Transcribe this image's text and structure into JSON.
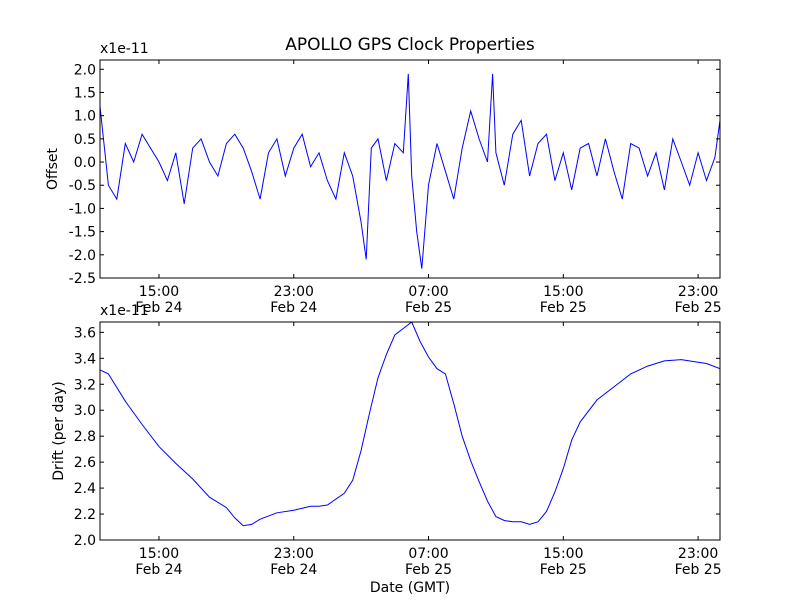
{
  "title": "APOLLO GPS Clock Properties",
  "series_color": "#0000ff",
  "chart_data": [
    {
      "type": "line",
      "ylabel": "Offset",
      "xlabel": "",
      "y_multiplier": "x1e-11",
      "ylim": [
        -2.5,
        2.2
      ],
      "xlim_hours": [
        11.5,
        48.3
      ],
      "yticks": [
        "2.0",
        "1.5",
        "1.0",
        "0.5",
        "0.0",
        "-0.5",
        "-1.0",
        "-1.5",
        "-2.0",
        "-2.5"
      ],
      "ytick_values": [
        2.0,
        1.5,
        1.0,
        0.5,
        0.0,
        -0.5,
        -1.0,
        -1.5,
        -2.0,
        -2.5
      ],
      "xticks": [
        {
          "hour": 15,
          "time": "15:00",
          "date": "Feb 24"
        },
        {
          "hour": 23,
          "time": "23:00",
          "date": "Feb 24"
        },
        {
          "hour": 31,
          "time": "07:00",
          "date": "Feb 25"
        },
        {
          "hour": 39,
          "time": "15:00",
          "date": "Feb 25"
        },
        {
          "hour": 47,
          "time": "23:00",
          "date": "Feb 25"
        }
      ],
      "series": [
        {
          "x": [
            11.5,
            12.0,
            12.5,
            13.0,
            13.5,
            14.0,
            14.5,
            15.0,
            15.5,
            16.0,
            16.5,
            17.0,
            17.5,
            18.0,
            18.5,
            19.0,
            19.5,
            20.0,
            20.5,
            21.0,
            21.5,
            22.0,
            22.5,
            23.0,
            23.5,
            24.0,
            24.5,
            25.0,
            25.5,
            26.0,
            26.5,
            27.0,
            27.3,
            27.6,
            28.0,
            28.5,
            29.0,
            29.5,
            29.8,
            30.0,
            30.3,
            30.6,
            31.0,
            31.5,
            32.0,
            32.5,
            33.0,
            33.5,
            34.0,
            34.5,
            34.8,
            35.0,
            35.5,
            36.0,
            36.5,
            37.0,
            37.5,
            38.0,
            38.5,
            39.0,
            39.5,
            40.0,
            40.5,
            41.0,
            41.5,
            42.0,
            42.5,
            43.0,
            43.5,
            44.0,
            44.5,
            45.0,
            45.5,
            46.0,
            46.5,
            47.0,
            47.5,
            48.0,
            48.3
          ],
          "y": [
            1.2,
            -0.5,
            -0.8,
            0.4,
            0.0,
            0.6,
            0.3,
            0.0,
            -0.4,
            0.2,
            -0.9,
            0.3,
            0.5,
            0.0,
            -0.3,
            0.4,
            0.6,
            0.3,
            -0.2,
            -0.8,
            0.2,
            0.5,
            -0.3,
            0.3,
            0.6,
            -0.1,
            0.2,
            -0.4,
            -0.8,
            0.2,
            -0.3,
            -1.3,
            -2.1,
            0.3,
            0.5,
            -0.4,
            0.4,
            0.2,
            1.9,
            -0.3,
            -1.5,
            -2.3,
            -0.5,
            0.4,
            -0.2,
            -0.8,
            0.3,
            1.1,
            0.5,
            0.0,
            1.9,
            0.2,
            -0.5,
            0.6,
            0.9,
            -0.3,
            0.4,
            0.6,
            -0.4,
            0.2,
            -0.6,
            0.3,
            0.4,
            -0.3,
            0.5,
            -0.2,
            -0.8,
            0.4,
            0.3,
            -0.3,
            0.2,
            -0.6,
            0.5,
            0.0,
            -0.5,
            0.2,
            -0.4,
            0.1,
            0.9
          ]
        }
      ]
    },
    {
      "type": "line",
      "ylabel": "Drift (per day)",
      "xlabel": "Date (GMT)",
      "y_multiplier": "x1e-11",
      "ylim": [
        2.0,
        3.68
      ],
      "xlim_hours": [
        11.5,
        48.3
      ],
      "yticks": [
        "3.6",
        "3.4",
        "3.2",
        "3.0",
        "2.8",
        "2.6",
        "2.4",
        "2.2",
        "2.0"
      ],
      "ytick_values": [
        3.6,
        3.4,
        3.2,
        3.0,
        2.8,
        2.6,
        2.4,
        2.2,
        2.0
      ],
      "xticks": [
        {
          "hour": 15,
          "time": "15:00",
          "date": "Feb 24"
        },
        {
          "hour": 23,
          "time": "23:00",
          "date": "Feb 24"
        },
        {
          "hour": 31,
          "time": "07:00",
          "date": "Feb 25"
        },
        {
          "hour": 39,
          "time": "15:00",
          "date": "Feb 25"
        },
        {
          "hour": 47,
          "time": "23:00",
          "date": "Feb 25"
        }
      ],
      "series": [
        {
          "x": [
            11.5,
            12.0,
            13.0,
            14.0,
            15.0,
            16.0,
            17.0,
            18.0,
            19.0,
            19.5,
            20.0,
            20.5,
            21.0,
            22.0,
            23.0,
            24.0,
            24.5,
            25.0,
            26.0,
            26.5,
            27.0,
            27.5,
            28.0,
            28.5,
            29.0,
            29.5,
            30.0,
            30.5,
            31.0,
            31.5,
            32.0,
            32.5,
            33.0,
            33.5,
            34.0,
            34.5,
            35.0,
            35.5,
            36.0,
            36.5,
            37.0,
            37.5,
            38.0,
            38.5,
            39.0,
            39.5,
            40.0,
            41.0,
            42.0,
            43.0,
            44.0,
            45.0,
            46.0,
            47.0,
            47.5,
            48.3
          ],
          "y": [
            3.31,
            3.28,
            3.07,
            2.89,
            2.72,
            2.59,
            2.47,
            2.33,
            2.25,
            2.17,
            2.11,
            2.12,
            2.16,
            2.21,
            2.23,
            2.26,
            2.26,
            2.27,
            2.36,
            2.46,
            2.69,
            2.98,
            3.25,
            3.43,
            3.58,
            3.63,
            3.68,
            3.53,
            3.41,
            3.32,
            3.28,
            3.05,
            2.8,
            2.61,
            2.45,
            2.3,
            2.18,
            2.15,
            2.14,
            2.14,
            2.12,
            2.14,
            2.22,
            2.37,
            2.55,
            2.77,
            2.91,
            3.08,
            3.18,
            3.28,
            3.34,
            3.38,
            3.39,
            3.37,
            3.36,
            3.32
          ]
        }
      ]
    }
  ]
}
